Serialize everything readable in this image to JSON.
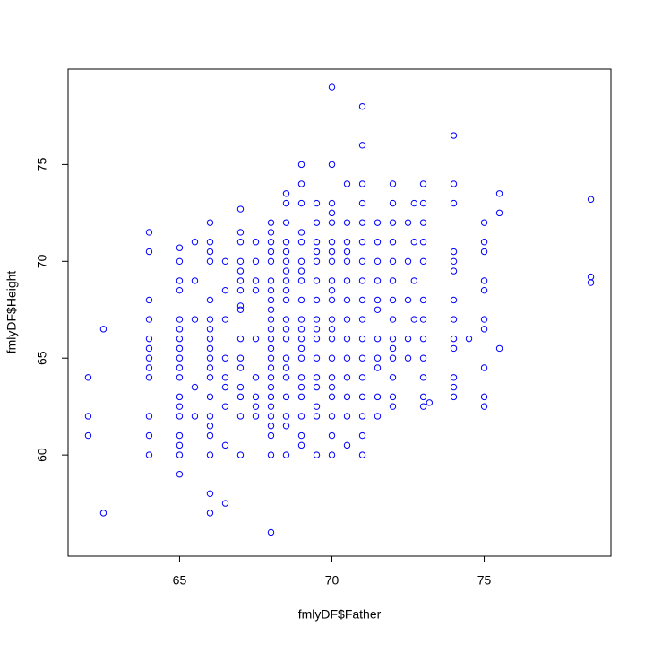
{
  "chart_data": {
    "type": "scatter",
    "x_label": "fmlyDF$Father",
    "y_label": "fmlyDF$Height",
    "color": "#0000ff",
    "xlim": [
      61.34,
      79.16
    ],
    "ylim": [
      54.77,
      79.93
    ],
    "xticks": [
      65,
      70,
      75
    ],
    "yticks": [
      60,
      65,
      70,
      75
    ],
    "x": [
      62,
      62,
      62,
      62.5,
      62.5,
      64,
      64,
      64,
      64,
      64,
      64,
      64,
      64,
      64,
      64,
      64,
      64,
      65,
      65,
      65,
      65,
      65,
      65,
      65,
      65,
      65,
      65,
      65,
      65,
      65,
      65,
      65,
      65,
      65,
      65,
      65.5,
      65.5,
      65.5,
      65.5,
      65.5,
      66,
      66,
      66,
      66,
      66,
      66,
      66,
      66,
      66,
      66,
      66,
      66,
      66,
      66,
      66,
      66,
      66,
      66,
      66,
      66.5,
      66.5,
      66.5,
      66.5,
      66.5,
      66.5,
      66.5,
      66.5,
      66.5,
      67,
      67,
      67,
      67,
      67,
      67,
      67,
      67,
      67,
      67,
      67,
      67,
      67,
      67,
      67,
      67,
      67.5,
      67.5,
      67.5,
      67.5,
      67.5,
      67.5,
      67.5,
      67.5,
      67.5,
      68,
      68,
      68,
      68,
      68,
      68,
      68,
      68,
      68,
      68,
      68,
      68,
      68,
      68,
      68,
      68,
      68,
      68,
      68,
      68,
      68,
      68,
      68,
      68,
      68.5,
      68.5,
      68.5,
      68.5,
      68.5,
      68.5,
      68.5,
      68.5,
      68.5,
      68.5,
      68.5,
      68.5,
      68.5,
      68.5,
      68.5,
      68.5,
      68.5,
      68.5,
      68.5,
      68.5,
      69,
      69,
      69,
      69,
      69,
      69,
      69,
      69,
      69,
      69,
      69,
      69,
      69,
      69,
      69,
      69,
      69,
      69,
      69,
      69,
      69.5,
      69.5,
      69.5,
      69.5,
      69.5,
      69.5,
      69.5,
      69.5,
      69.5,
      69.5,
      69.5,
      69.5,
      69.5,
      69.5,
      69.5,
      69.5,
      70,
      70,
      70,
      70,
      70,
      70,
      70,
      70,
      70,
      70,
      70,
      70,
      70,
      70,
      70,
      70,
      70,
      70,
      70,
      70,
      70,
      70.5,
      70.5,
      70.5,
      70.5,
      70.5,
      70.5,
      70.5,
      70.5,
      70.5,
      70.5,
      70.5,
      70.5,
      70.5,
      70.5,
      71,
      71,
      71,
      71,
      71,
      71,
      71,
      71,
      71,
      71,
      71,
      71,
      71,
      71,
      71,
      71,
      71,
      71.5,
      71.5,
      71.5,
      71.5,
      71.5,
      71.5,
      71.5,
      71.5,
      71.5,
      71.5,
      71.5,
      72,
      72,
      72,
      72,
      72,
      72,
      72,
      72,
      72,
      72,
      72,
      72,
      72,
      72,
      72.5,
      72.5,
      72.5,
      72.5,
      72.5,
      72.7,
      72.7,
      72.7,
      72.7,
      73,
      73,
      73,
      73,
      73,
      73,
      73,
      73,
      73,
      73,
      73,
      73,
      73.2,
      74,
      74,
      74,
      74,
      74,
      74,
      74,
      74,
      74,
      74,
      74,
      74,
      74,
      74.5,
      75,
      75,
      75,
      75,
      75,
      75,
      75,
      75,
      75,
      75,
      75.5,
      75.5,
      75.5,
      78.5,
      78.5,
      78.5
    ],
    "values": [
      64,
      62,
      61,
      66.5,
      57,
      71.5,
      70.5,
      68,
      67,
      66,
      65.5,
      65,
      64.5,
      64,
      62,
      61,
      60,
      70.7,
      70,
      69,
      68.5,
      67,
      66.5,
      66,
      65.5,
      65,
      64.5,
      64,
      63,
      62.5,
      62,
      61,
      60.5,
      60,
      59,
      71,
      69,
      67,
      63.5,
      62,
      72,
      71,
      70.5,
      70,
      68,
      67,
      66.5,
      66,
      65.5,
      65,
      64.5,
      64,
      63,
      62,
      61.5,
      61,
      60,
      58,
      57,
      70,
      68.5,
      67,
      65,
      64,
      63.5,
      62.5,
      60.5,
      57.5,
      72.7,
      71.5,
      71,
      70,
      69.5,
      69,
      68.5,
      67.7,
      67.5,
      66,
      65,
      64.5,
      63.5,
      63,
      62,
      60,
      71,
      70,
      69,
      68.5,
      66,
      64,
      63,
      62.5,
      62,
      72,
      71.5,
      71,
      70.5,
      70,
      69,
      68.5,
      68,
      67.5,
      67,
      66.5,
      66,
      65.5,
      65,
      64.5,
      64,
      63.5,
      63,
      62.5,
      62,
      61.5,
      61,
      60,
      56,
      73.5,
      73,
      72,
      71,
      70.5,
      70,
      69.5,
      69,
      68.5,
      68,
      67,
      66.5,
      66,
      65,
      64.5,
      64,
      63,
      62,
      61.5,
      60,
      75,
      74,
      73,
      71.5,
      71,
      70,
      69.5,
      69,
      68,
      67,
      66.5,
      66,
      65.5,
      65,
      64,
      63.5,
      63,
      62,
      61,
      60.5,
      73,
      72,
      71,
      70.5,
      70,
      69,
      68,
      67,
      66.5,
      66,
      65,
      64,
      63.5,
      62.5,
      62,
      60,
      79,
      75,
      73,
      72.5,
      72,
      71,
      70.5,
      70,
      69,
      68.5,
      68,
      67,
      66.5,
      66,
      65,
      64,
      63.5,
      63,
      62,
      61,
      60,
      74,
      72,
      71,
      70.5,
      70,
      69,
      68,
      67,
      66,
      65,
      64,
      63,
      62,
      60.5,
      78,
      76,
      74,
      73,
      72,
      71,
      70,
      69,
      68,
      67,
      66,
      65,
      64,
      63,
      62,
      61,
      60,
      72,
      71,
      70,
      69,
      68,
      67.5,
      66,
      65,
      64.5,
      63,
      62,
      74,
      73,
      72,
      71,
      70,
      69,
      68,
      67,
      66,
      65.5,
      65,
      64,
      63,
      62.5,
      72,
      70,
      68,
      66,
      65,
      73,
      71,
      69,
      67,
      74,
      73,
      72,
      71,
      70,
      68,
      67,
      66,
      65,
      64,
      63,
      62.5,
      62.7,
      76.5,
      74,
      73,
      70.5,
      70,
      69.5,
      68,
      67,
      66,
      65.5,
      64,
      63.5,
      63,
      66,
      72,
      71,
      70.5,
      69,
      68.5,
      67,
      66.5,
      64.5,
      63,
      62.5,
      73.5,
      72.5,
      65.5,
      73.2,
      69.2,
      68.9
    ]
  }
}
